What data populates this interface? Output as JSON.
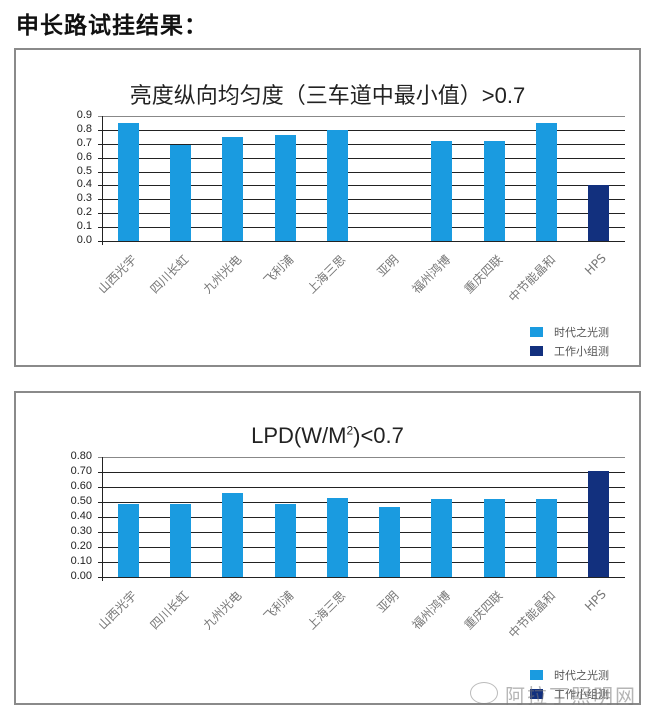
{
  "page": {
    "title": "申长路试挂结果："
  },
  "colors": {
    "series1": "#1a9be0",
    "series2": "#12307e",
    "grid": "#222222"
  },
  "legend": [
    "时代之光测",
    "工作小组测"
  ],
  "watermark": "阿拉丁照明网",
  "chart_data": [
    {
      "type": "bar",
      "title": "亮度纵向均匀度（三车道中最小值）>0.7",
      "xlabel": "",
      "ylabel": "",
      "ylim": [
        0,
        0.9
      ],
      "yticks": [
        "0.9",
        "0.8",
        "0.7",
        "0.6",
        "0.5",
        "0.4",
        "0.3",
        "0.2",
        "0.1",
        "0.0"
      ],
      "grid": true,
      "legend_position": "bottom-right",
      "categories": [
        "山西光宇",
        "四川长虹",
        "九州光电",
        "飞利浦",
        "上海三思",
        "亚明",
        "福州鸿博",
        "重庆四联",
        "中节能晶和",
        "HPS"
      ],
      "series": [
        {
          "name": "时代之光测",
          "values": [
            0.85,
            0.69,
            0.75,
            0.76,
            0.8,
            null,
            0.72,
            0.72,
            0.85,
            null
          ]
        },
        {
          "name": "工作小组测",
          "values": [
            null,
            null,
            null,
            null,
            null,
            null,
            null,
            null,
            null,
            0.4
          ]
        }
      ]
    },
    {
      "type": "bar",
      "title": "LPD(W/M²)<0.7",
      "title_parts": {
        "pre": "LPD(W/M",
        "sup": "2",
        "post": ")<0.7"
      },
      "xlabel": "",
      "ylabel": "",
      "ylim": [
        0,
        0.8
      ],
      "yticks": [
        "0.80",
        "0.70",
        "0.60",
        "0.50",
        "0.40",
        "0.30",
        "0.20",
        "0.10",
        "0.00"
      ],
      "grid": true,
      "legend_position": "bottom-right",
      "categories": [
        "山西光宇",
        "四川长虹",
        "九州光电",
        "飞利浦",
        "上海三思",
        "亚明",
        "福州鸿博",
        "重庆四联",
        "中节能晶和",
        "HPS"
      ],
      "series": [
        {
          "name": "时代之光测",
          "values": [
            0.49,
            0.49,
            0.56,
            0.49,
            0.53,
            0.47,
            0.52,
            0.52,
            0.52,
            null
          ]
        },
        {
          "name": "工作小组测",
          "values": [
            null,
            null,
            null,
            null,
            null,
            null,
            null,
            null,
            null,
            0.71
          ]
        }
      ]
    }
  ]
}
